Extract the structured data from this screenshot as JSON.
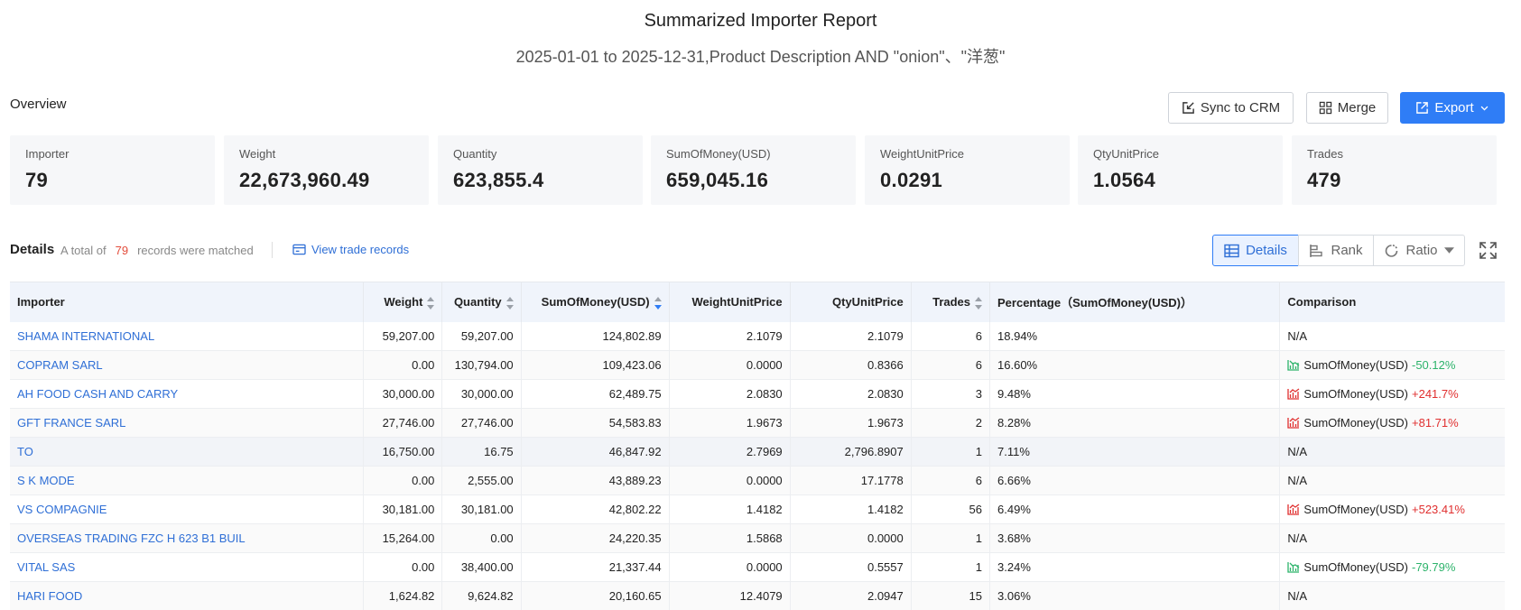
{
  "report": {
    "title": "Summarized Importer Report",
    "subtitle": "2025-01-01 to 2025-12-31,Product Description AND \"onion\"、\"洋葱\""
  },
  "overview": {
    "label": "Overview",
    "buttons": {
      "sync": "Sync to CRM",
      "merge": "Merge",
      "export": "Export"
    },
    "stats": [
      {
        "label": "Importer",
        "value": "79"
      },
      {
        "label": "Weight",
        "value": "22,673,960.49"
      },
      {
        "label": "Quantity",
        "value": "623,855.4"
      },
      {
        "label": "SumOfMoney(USD)",
        "value": "659,045.16"
      },
      {
        "label": "WeightUnitPrice",
        "value": "0.0291"
      },
      {
        "label": "QtyUnitPrice",
        "value": "1.0564"
      },
      {
        "label": "Trades",
        "value": "479"
      }
    ]
  },
  "details": {
    "label": "Details",
    "total_prefix": "A total of",
    "total_count": "79",
    "total_suffix": "records were matched",
    "view_trade_records": "View trade records",
    "views": {
      "details": "Details",
      "rank": "Rank",
      "ratio": "Ratio"
    }
  },
  "table": {
    "headers": {
      "importer": "Importer",
      "weight": "Weight",
      "quantity": "Quantity",
      "sum": "SumOfMoney(USD)",
      "wup": "WeightUnitPrice",
      "qup": "QtyUnitPrice",
      "trades": "Trades",
      "pct": "Percentage（SumOfMoney(USD)）",
      "cmp": "Comparison"
    },
    "rows": [
      {
        "importer": "SHAMA INTERNATIONAL",
        "weight": "59,207.00",
        "quantity": "59,207.00",
        "sum": "124,802.89",
        "wup": "2.1079",
        "qup": "2.1079",
        "trades": "6",
        "pct": "18.94%",
        "cmp_na": "N/A",
        "cmp_label": "",
        "cmp_value": "",
        "trend": "none"
      },
      {
        "importer": "COPRAM SARL",
        "weight": "0.00",
        "quantity": "130,794.00",
        "sum": "109,423.06",
        "wup": "0.0000",
        "qup": "0.8366",
        "trades": "6",
        "pct": "16.60%",
        "cmp_na": "",
        "cmp_label": "SumOfMoney(USD)",
        "cmp_value": "-50.12%",
        "trend": "down"
      },
      {
        "importer": "AH FOOD CASH AND CARRY",
        "weight": "30,000.00",
        "quantity": "30,000.00",
        "sum": "62,489.75",
        "wup": "2.0830",
        "qup": "2.0830",
        "trades": "3",
        "pct": "9.48%",
        "cmp_na": "",
        "cmp_label": "SumOfMoney(USD)",
        "cmp_value": "+241.7%",
        "trend": "up"
      },
      {
        "importer": "GFT FRANCE SARL",
        "weight": "27,746.00",
        "quantity": "27,746.00",
        "sum": "54,583.83",
        "wup": "1.9673",
        "qup": "1.9673",
        "trades": "2",
        "pct": "8.28%",
        "cmp_na": "",
        "cmp_label": "SumOfMoney(USD)",
        "cmp_value": "+81.71%",
        "trend": "up"
      },
      {
        "importer": "TO",
        "weight": "16,750.00",
        "quantity": "16.75",
        "sum": "46,847.92",
        "wup": "2.7969",
        "qup": "2,796.8907",
        "trades": "1",
        "pct": "7.11%",
        "cmp_na": "N/A",
        "cmp_label": "",
        "cmp_value": "",
        "trend": "none"
      },
      {
        "importer": "S K MODE",
        "weight": "0.00",
        "quantity": "2,555.00",
        "sum": "43,889.23",
        "wup": "0.0000",
        "qup": "17.1778",
        "trades": "6",
        "pct": "6.66%",
        "cmp_na": "N/A",
        "cmp_label": "",
        "cmp_value": "",
        "trend": "none"
      },
      {
        "importer": "VS COMPAGNIE",
        "weight": "30,181.00",
        "quantity": "30,181.00",
        "sum": "42,802.22",
        "wup": "1.4182",
        "qup": "1.4182",
        "trades": "56",
        "pct": "6.49%",
        "cmp_na": "",
        "cmp_label": "SumOfMoney(USD)",
        "cmp_value": "+523.41%",
        "trend": "up"
      },
      {
        "importer": "OVERSEAS TRADING FZC H 623 B1 BUIL",
        "weight": "15,264.00",
        "quantity": "0.00",
        "sum": "24,220.35",
        "wup": "1.5868",
        "qup": "0.0000",
        "trades": "1",
        "pct": "3.68%",
        "cmp_na": "N/A",
        "cmp_label": "",
        "cmp_value": "",
        "trend": "none"
      },
      {
        "importer": "VITAL SAS",
        "weight": "0.00",
        "quantity": "38,400.00",
        "sum": "21,337.44",
        "wup": "0.0000",
        "qup": "0.5557",
        "trades": "1",
        "pct": "3.24%",
        "cmp_na": "",
        "cmp_label": "SumOfMoney(USD)",
        "cmp_value": "-79.79%",
        "trend": "down"
      },
      {
        "importer": "HARI FOOD",
        "weight": "1,624.82",
        "quantity": "9,624.82",
        "sum": "20,160.65",
        "wup": "12.4079",
        "qup": "2.0947",
        "trades": "15",
        "pct": "3.06%",
        "cmp_na": "N/A",
        "cmp_label": "",
        "cmp_value": "",
        "trend": "none"
      }
    ]
  },
  "colors": {
    "accent": "#2f7df6",
    "link": "#2f6fd6",
    "up": "#e02f2f",
    "down": "#2db36b",
    "count": "#e34d3c"
  }
}
